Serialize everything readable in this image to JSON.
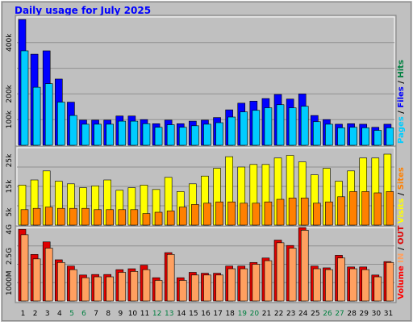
{
  "title": "Daily usage for July 2025",
  "colors": {
    "background": "#c0c0c0",
    "title": "#0000ff",
    "pages": "#00ccff",
    "hits": "#0000ff",
    "sites": "#ff8000",
    "visits": "#ffff00",
    "in": "#ffa060",
    "out": "#e00000",
    "weekend_label": "#008040",
    "volume_label": "#ff0000"
  },
  "chart_data": [
    {
      "type": "bar",
      "panel": "top",
      "categories": [
        "1",
        "2",
        "3",
        "4",
        "5",
        "6",
        "7",
        "8",
        "9",
        "10",
        "11",
        "12",
        "13",
        "14",
        "15",
        "16",
        "17",
        "18",
        "19",
        "20",
        "21",
        "22",
        "23",
        "24",
        "25",
        "26",
        "27",
        "28",
        "29",
        "30",
        "31"
      ],
      "weekend_days": [
        "5",
        "6",
        "12",
        "13",
        "19",
        "20",
        "26",
        "27"
      ],
      "y_ticks": [
        "100k",
        "200k",
        "400k"
      ],
      "ylim": [
        0,
        500000
      ],
      "legend": [
        {
          "text": "Pages",
          "color": "#00ccff"
        },
        {
          "text": " / ",
          "color": "#000000"
        },
        {
          "text": "Files",
          "color": "#0000ff"
        },
        {
          "text": " / ",
          "color": "#000000"
        },
        {
          "text": "Hits",
          "color": "#008040"
        }
      ],
      "series": [
        {
          "name": "Hits",
          "color": "#0000ff",
          "values": [
            490000,
            355000,
            368000,
            258000,
            168000,
            98000,
            98000,
            98000,
            114000,
            114000,
            100000,
            84000,
            98000,
            84000,
            94000,
            98000,
            108000,
            138000,
            164000,
            172000,
            182000,
            198000,
            180000,
            200000,
            116000,
            100000,
            82000,
            84000,
            82000,
            70000,
            82000
          ]
        },
        {
          "name": "Pages",
          "color": "#00ccff",
          "values": [
            368000,
            226000,
            240000,
            168000,
            116000,
            82000,
            82000,
            82000,
            94000,
            94000,
            84000,
            70000,
            80000,
            70000,
            76000,
            82000,
            88000,
            110000,
            130000,
            136000,
            146000,
            158000,
            146000,
            152000,
            92000,
            82000,
            68000,
            70000,
            68000,
            58000,
            68000
          ]
        }
      ]
    },
    {
      "type": "bar",
      "panel": "middle",
      "categories": [
        "1",
        "2",
        "3",
        "4",
        "5",
        "6",
        "7",
        "8",
        "9",
        "10",
        "11",
        "12",
        "13",
        "14",
        "15",
        "16",
        "17",
        "18",
        "19",
        "20",
        "21",
        "22",
        "23",
        "24",
        "25",
        "26",
        "27",
        "28",
        "29",
        "30",
        "31"
      ],
      "y_ticks": [
        "5k",
        "15k",
        "25k"
      ],
      "ylim": [
        0,
        30000
      ],
      "legend": [
        {
          "text": "Visits",
          "color": "#ffff00"
        },
        {
          "text": " / ",
          "color": "#000000"
        },
        {
          "text": "Sites",
          "color": "#ff8000"
        }
      ],
      "series": [
        {
          "name": "Visits",
          "color": "#ffff00",
          "values": [
            15500,
            17500,
            21000,
            17000,
            16000,
            14500,
            15200,
            17500,
            13500,
            14500,
            15500,
            13800,
            18500,
            13000,
            16000,
            19000,
            22000,
            26500,
            22500,
            23500,
            23500,
            26000,
            27000,
            24500,
            19500,
            22000,
            17000,
            21000,
            26000,
            26000,
            27500
          ]
        },
        {
          "name": "Sites",
          "color": "#ff8000",
          "values": [
            6000,
            6500,
            7000,
            6500,
            6500,
            6500,
            6000,
            6000,
            6000,
            6000,
            4500,
            5000,
            5500,
            7000,
            8000,
            8500,
            9000,
            9000,
            8500,
            8500,
            9000,
            10000,
            10500,
            10500,
            8500,
            9000,
            11000,
            13000,
            13000,
            12500,
            13000
          ]
        }
      ]
    },
    {
      "type": "bar",
      "panel": "bottom",
      "categories": [
        "1",
        "2",
        "3",
        "4",
        "5",
        "6",
        "7",
        "8",
        "9",
        "10",
        "11",
        "12",
        "13",
        "14",
        "15",
        "16",
        "17",
        "18",
        "19",
        "20",
        "21",
        "22",
        "23",
        "24",
        "25",
        "26",
        "27",
        "28",
        "29",
        "30",
        "31"
      ],
      "y_ticks": [
        "1000M",
        "2.5G",
        "4G"
      ],
      "ylim": [
        0,
        4100
      ],
      "legend": [
        {
          "text": "Volume",
          "color": "#ff0000"
        },
        {
          "text": "  ",
          "color": "#000000"
        },
        {
          "text": "IN",
          "color": "#ffa060"
        },
        {
          "text": " / ",
          "color": "#000000"
        },
        {
          "text": "OUT",
          "color": "#e00000"
        }
      ],
      "series": [
        {
          "name": "OUT",
          "color": "#e00000",
          "values": [
            4000,
            2600,
            3300,
            2300,
            1950,
            1450,
            1480,
            1480,
            1750,
            1800,
            2000,
            1300,
            2700,
            1300,
            1600,
            1550,
            1550,
            1950,
            1950,
            2150,
            2400,
            3400,
            3100,
            4100,
            1950,
            1850,
            2550,
            1900,
            1900,
            1450,
            2200
          ]
        },
        {
          "name": "IN",
          "color": "#ffa060",
          "values": [
            3700,
            2350,
            2950,
            2150,
            1750,
            1300,
            1350,
            1350,
            1600,
            1650,
            1750,
            1150,
            2600,
            1150,
            1450,
            1450,
            1450,
            1800,
            1800,
            2050,
            2250,
            3250,
            2950,
            3950,
            1800,
            1750,
            2400,
            1800,
            1750,
            1350,
            2150
          ]
        }
      ]
    }
  ]
}
